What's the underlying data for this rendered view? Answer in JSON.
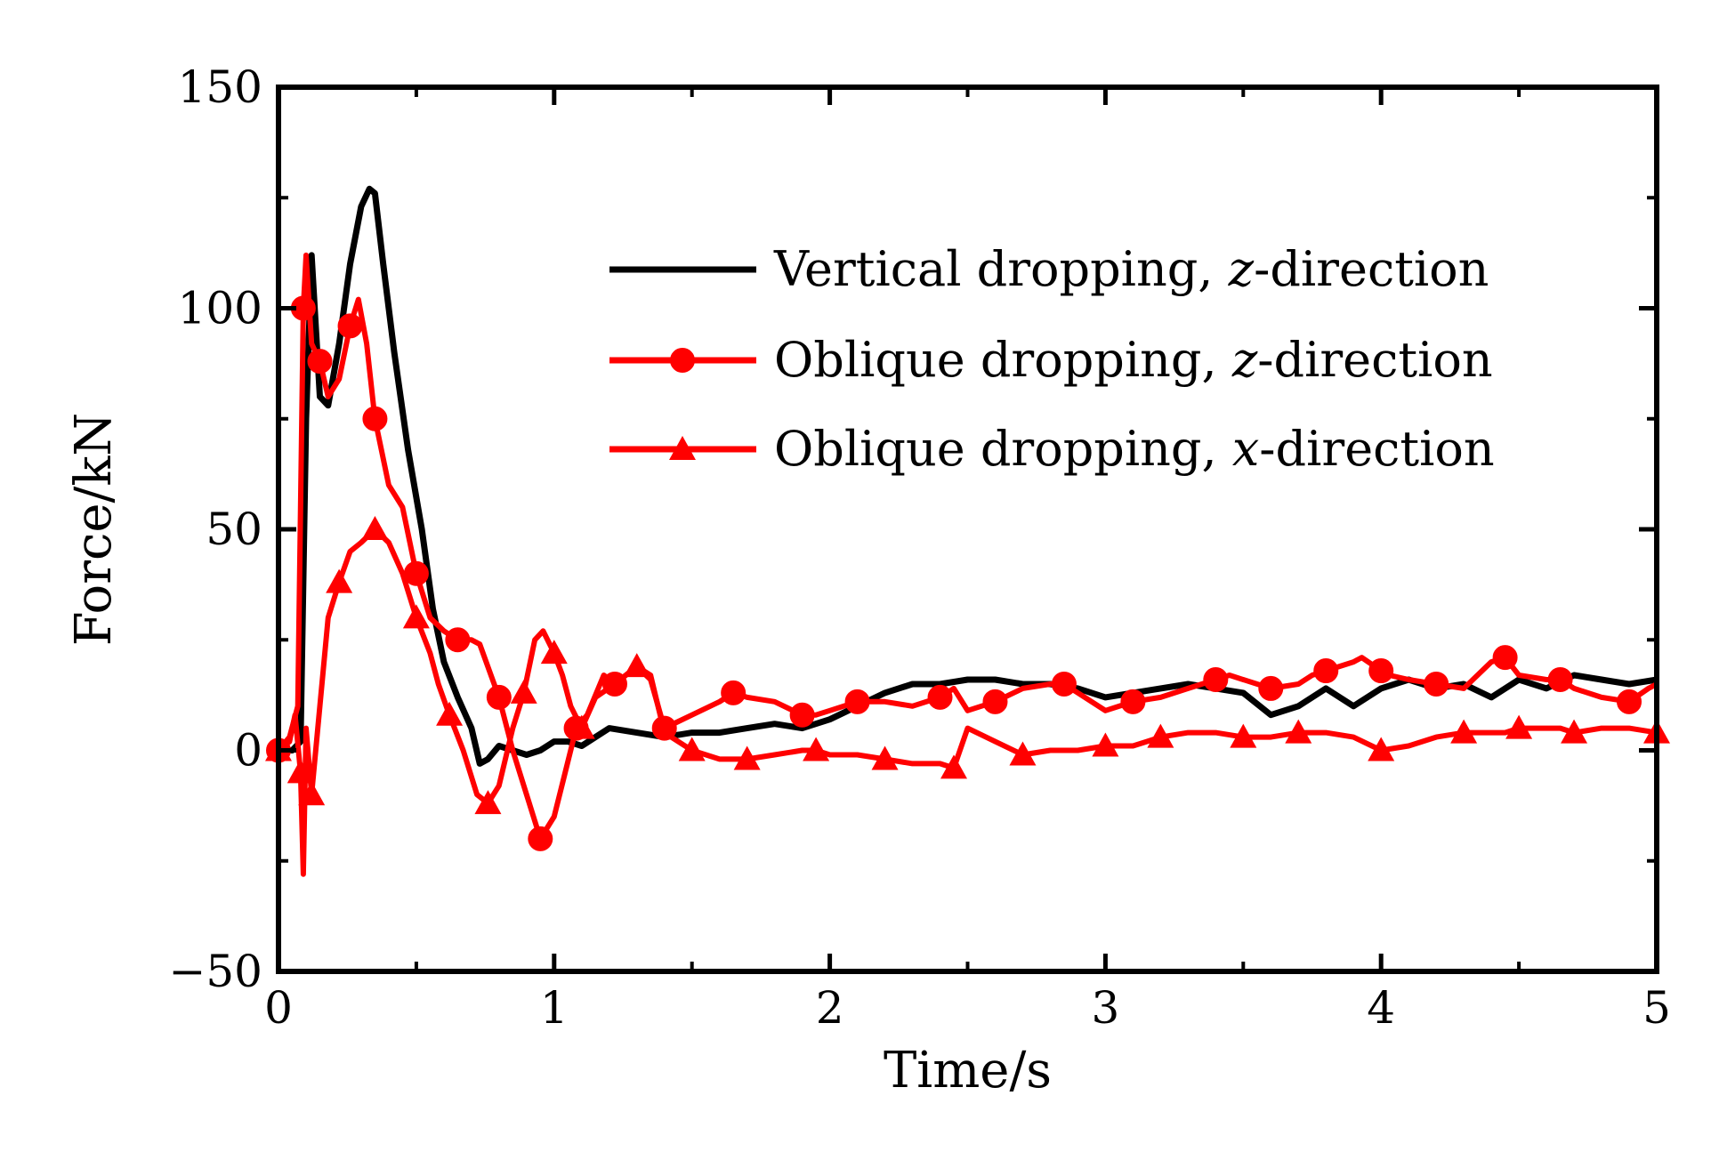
{
  "chart_data": {
    "type": "line",
    "title": "",
    "xlabel": "Time/s",
    "ylabel": "Force/kN",
    "xlim": [
      0,
      5
    ],
    "ylim": [
      -50,
      150
    ],
    "xticks": [
      0,
      1,
      2,
      3,
      4,
      5
    ],
    "yticks": [
      -50,
      0,
      50,
      100,
      150
    ],
    "ytick_labels": [
      "−50",
      "0",
      "50",
      "100",
      "150"
    ],
    "grid": false,
    "legend_position": "top-right",
    "series": [
      {
        "name": "Vertical dropping, z-direction",
        "legend_main": "Vertical dropping, ",
        "legend_var": "z",
        "legend_suffix": "-direction",
        "color": "#000000",
        "marker": "none",
        "x": [
          0,
          0.05,
          0.08,
          0.1,
          0.12,
          0.15,
          0.18,
          0.22,
          0.26,
          0.3,
          0.33,
          0.35,
          0.38,
          0.42,
          0.47,
          0.52,
          0.56,
          0.6,
          0.65,
          0.7,
          0.73,
          0.76,
          0.8,
          0.85,
          0.9,
          0.95,
          1.0,
          1.05,
          1.1,
          1.2,
          1.3,
          1.4,
          1.5,
          1.6,
          1.7,
          1.8,
          1.9,
          2.0,
          2.1,
          2.2,
          2.3,
          2.4,
          2.5,
          2.6,
          2.7,
          2.8,
          2.9,
          3.0,
          3.1,
          3.2,
          3.3,
          3.4,
          3.5,
          3.6,
          3.7,
          3.8,
          3.9,
          4.0,
          4.1,
          4.2,
          4.3,
          4.4,
          4.5,
          4.6,
          4.7,
          4.8,
          4.9,
          5.0
        ],
        "y": [
          0,
          0,
          2,
          75,
          112,
          80,
          78,
          92,
          110,
          123,
          127,
          126,
          110,
          90,
          68,
          50,
          32,
          20,
          12,
          5,
          -3,
          -2,
          1,
          0,
          -1,
          0,
          2,
          2,
          1,
          5,
          4,
          3,
          4,
          4,
          5,
          6,
          5,
          7,
          10,
          13,
          15,
          15,
          16,
          16,
          15,
          15,
          14,
          12,
          13,
          14,
          15,
          14,
          13,
          8,
          10,
          14,
          10,
          14,
          16,
          14,
          15,
          12,
          16,
          14,
          17,
          16,
          15,
          16
        ]
      },
      {
        "name": "Oblique dropping, z-direction",
        "legend_main": "Oblique dropping, ",
        "legend_var": "z",
        "legend_suffix": "-direction",
        "color": "#ff0000",
        "marker": "circle",
        "x": [
          0,
          0.04,
          0.07,
          0.09,
          0.1,
          0.12,
          0.15,
          0.18,
          0.22,
          0.26,
          0.29,
          0.32,
          0.35,
          0.4,
          0.45,
          0.5,
          0.55,
          0.6,
          0.65,
          0.7,
          0.73,
          0.8,
          0.85,
          0.9,
          0.95,
          1.0,
          1.04,
          1.08,
          1.12,
          1.18,
          1.22,
          1.3,
          1.35,
          1.4,
          1.5,
          1.6,
          1.65,
          1.7,
          1.8,
          1.9,
          1.95,
          2.0,
          2.1,
          2.2,
          2.3,
          2.4,
          2.45,
          2.5,
          2.6,
          2.7,
          2.8,
          2.85,
          2.9,
          3.0,
          3.1,
          3.2,
          3.3,
          3.4,
          3.45,
          3.5,
          3.6,
          3.7,
          3.75,
          3.8,
          3.9,
          3.93,
          4.0,
          4.03,
          4.1,
          4.2,
          4.3,
          4.4,
          4.45,
          4.5,
          4.6,
          4.65,
          4.7,
          4.8,
          4.9,
          4.97,
          5.0
        ],
        "y": [
          0,
          3,
          10,
          100,
          112,
          92,
          88,
          80,
          84,
          96,
          102,
          92,
          75,
          60,
          55,
          40,
          30,
          27,
          25,
          25,
          24,
          12,
          0,
          -10,
          -20,
          -15,
          -5,
          5,
          8,
          17,
          15,
          19,
          16,
          5,
          8,
          11,
          13,
          12,
          11,
          8,
          8,
          9,
          11,
          11,
          10,
          12,
          14,
          9,
          11,
          14,
          15,
          15,
          13,
          9,
          11,
          12,
          14,
          16,
          17,
          16,
          14,
          15,
          17,
          18,
          20,
          21,
          18,
          17,
          16,
          15,
          14,
          20,
          21,
          17,
          16,
          16,
          14,
          12,
          11,
          14,
          15
        ]
      },
      {
        "name": "Oblique dropping, x-direction",
        "legend_main": "Oblique dropping, ",
        "legend_var": "x",
        "legend_suffix": "-direction",
        "color": "#ff0000",
        "marker": "triangle",
        "x": [
          0,
          0.04,
          0.06,
          0.08,
          0.09,
          0.1,
          0.12,
          0.15,
          0.18,
          0.22,
          0.26,
          0.3,
          0.35,
          0.4,
          0.45,
          0.5,
          0.55,
          0.58,
          0.62,
          0.67,
          0.72,
          0.76,
          0.8,
          0.85,
          0.89,
          0.93,
          0.96,
          1.0,
          1.03,
          1.06,
          1.1,
          1.15,
          1.22,
          1.3,
          1.35,
          1.4,
          1.5,
          1.6,
          1.65,
          1.7,
          1.8,
          1.9,
          1.95,
          2.0,
          2.1,
          2.2,
          2.3,
          2.4,
          2.45,
          2.5,
          2.6,
          2.7,
          2.8,
          2.9,
          3.0,
          3.1,
          3.15,
          3.2,
          3.3,
          3.4,
          3.5,
          3.55,
          3.6,
          3.7,
          3.8,
          3.9,
          4.0,
          4.1,
          4.2,
          4.3,
          4.4,
          4.45,
          4.5,
          4.6,
          4.65,
          4.7,
          4.8,
          4.9,
          5.0
        ],
        "y": [
          0,
          2,
          8,
          -5,
          -28,
          5,
          -10,
          10,
          30,
          38,
          45,
          47,
          50,
          47,
          40,
          30,
          22,
          15,
          8,
          0,
          -10,
          -12,
          -8,
          5,
          13,
          25,
          27,
          22,
          17,
          10,
          5,
          12,
          15,
          19,
          17,
          4,
          0,
          -2,
          -2,
          -2,
          -1,
          0,
          0,
          -1,
          -1,
          -2,
          -3,
          -3,
          -4,
          5,
          2,
          -1,
          0,
          0,
          1,
          1,
          2,
          3,
          4,
          4,
          3,
          3,
          3,
          4,
          4,
          3,
          0,
          1,
          3,
          4,
          4,
          4,
          5,
          5,
          5,
          4,
          5,
          5,
          4
        ]
      }
    ]
  }
}
